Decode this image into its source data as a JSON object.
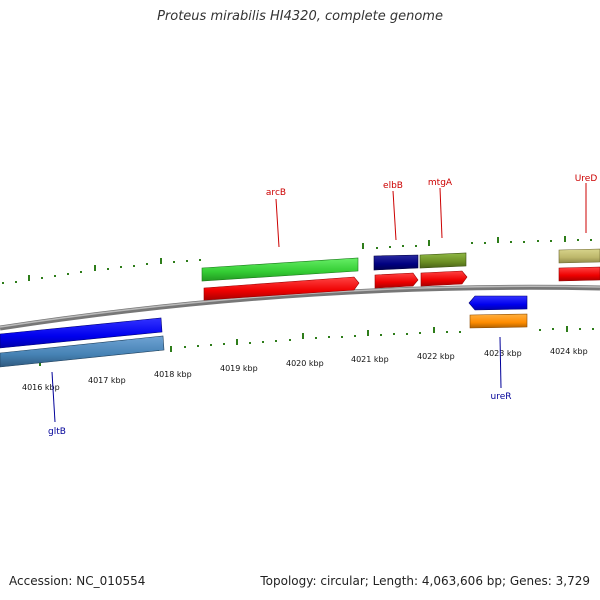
{
  "title": "Proteus mirabilis HI4320, complete genome",
  "footer": {
    "accession": "Accession: NC_010554",
    "topology": "Topology: circular; Length: 4,063,606 bp; Genes: 3,729"
  },
  "scale": {
    "labels": [
      "4016 kbp",
      "4017 kbp",
      "4018 kbp",
      "4019 kbp",
      "4020 kbp",
      "4021 kbp",
      "4022 kbp",
      "4023 kbp",
      "4024 kbp"
    ]
  },
  "genes": {
    "arcB": "arcB",
    "elbB": "elbB",
    "mtgA": "mtgA",
    "UreD": "UreD",
    "ureR": "ureR",
    "gltB": "gltB"
  },
  "colors": {
    "backbone": "#888888",
    "tick": "#2e7d1a",
    "green_feature": "#33cc33",
    "red_feature": "#ee0000",
    "navy_feature": "#000080",
    "olive_feature": "#6b8e23",
    "khaki_feature": "#bdb76b",
    "blue_feature": "#0000ee",
    "steelblue_feature": "#4682b4",
    "orange_feature": "#ff8c00",
    "label_red": "#cc0000",
    "label_blue": "#000099"
  }
}
